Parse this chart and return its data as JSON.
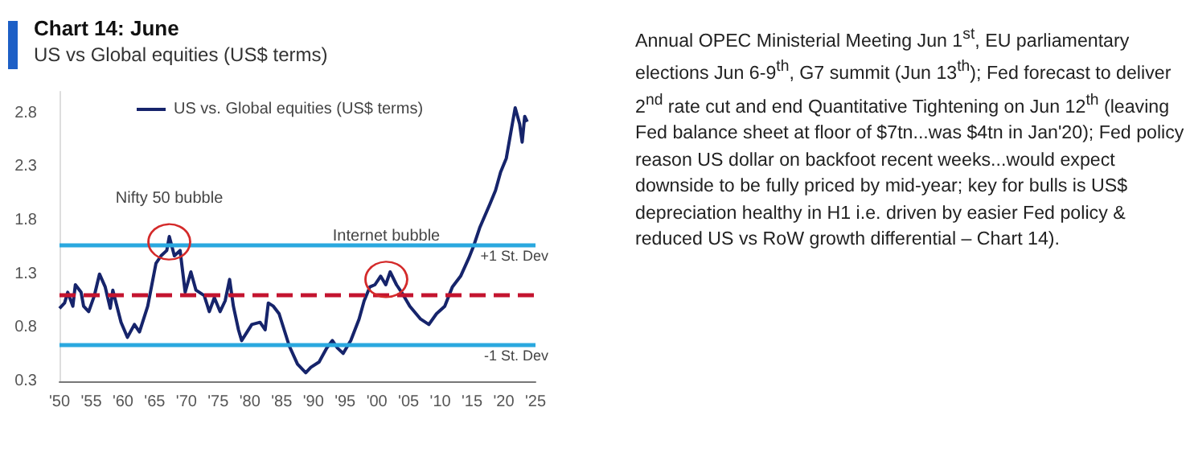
{
  "chart_data": {
    "type": "line",
    "title": "Chart 14: June",
    "subtitle": "US vs Global equities (US$ terms)",
    "x": [
      1950,
      1950.8,
      1951.3,
      1952.1,
      1952.5,
      1953.4,
      1953.8,
      1954.6,
      1955.5,
      1956.3,
      1957.2,
      1958,
      1958.4,
      1959.7,
      1960.7,
      1961.8,
      1962.6,
      1963.9,
      1965.2,
      1966,
      1966.9,
      1967.3,
      1968.1,
      1969,
      1969.8,
      1970.7,
      1971.5,
      1972.8,
      1973.6,
      1974.4,
      1975.3,
      1976.1,
      1976.8,
      1977.4,
      1978.2,
      1978.7,
      1980.3,
      1981.6,
      1982.4,
      1982.9,
      1983.7,
      1984.6,
      1986.2,
      1987.5,
      1988.8,
      1989.6,
      1990.9,
      1992.1,
      1993,
      1993.8,
      1994.7,
      1995.9,
      1997.2,
      1998,
      1998.9,
      1999.7,
      2000.6,
      2001.4,
      2002.1,
      2003.1,
      2003.9,
      2005.2,
      2006.9,
      2008.2,
      2009.4,
      2010.7,
      2011.9,
      2013.2,
      2014.5,
      2015.3,
      2016.2,
      2017.8,
      2018.7,
      2019.5,
      2020.4,
      2021.2,
      2021.8,
      2022.5,
      2022.9,
      2023.3,
      2023.7
    ],
    "series": [
      {
        "name": "US vs. Global equities (US$ terms)",
        "color": "#16246b",
        "values": [
          0.98,
          1.03,
          1.13,
          1.0,
          1.2,
          1.13,
          1.0,
          0.95,
          1.1,
          1.3,
          1.18,
          0.98,
          1.15,
          0.85,
          0.71,
          0.83,
          0.76,
          1.0,
          1.4,
          1.47,
          1.52,
          1.65,
          1.47,
          1.52,
          1.13,
          1.32,
          1.15,
          1.1,
          0.95,
          1.08,
          0.95,
          1.05,
          1.25,
          1.0,
          0.78,
          0.68,
          0.83,
          0.85,
          0.78,
          1.03,
          1.0,
          0.93,
          0.63,
          0.46,
          0.38,
          0.43,
          0.48,
          0.61,
          0.68,
          0.61,
          0.56,
          0.68,
          0.88,
          1.05,
          1.18,
          1.2,
          1.28,
          1.2,
          1.32,
          1.2,
          1.13,
          1.0,
          0.88,
          0.83,
          0.93,
          1.0,
          1.18,
          1.28,
          1.45,
          1.57,
          1.73,
          1.95,
          2.08,
          2.25,
          2.38,
          2.65,
          2.85,
          2.7,
          2.53,
          2.77,
          2.72
        ]
      }
    ],
    "xlim": [
      1950,
      2025
    ],
    "xticks": [
      {
        "value": 1950,
        "label": "'50"
      },
      {
        "value": 1955,
        "label": "'55"
      },
      {
        "value": 1960,
        "label": "'60"
      },
      {
        "value": 1965,
        "label": "'65"
      },
      {
        "value": 1970,
        "label": "'70"
      },
      {
        "value": 1975,
        "label": "'75"
      },
      {
        "value": 1980,
        "label": "'80"
      },
      {
        "value": 1985,
        "label": "'85"
      },
      {
        "value": 1990,
        "label": "'90"
      },
      {
        "value": 1995,
        "label": "'95"
      },
      {
        "value": 2000,
        "label": "'00"
      },
      {
        "value": 2005,
        "label": "'05"
      },
      {
        "value": 2010,
        "label": "'10"
      },
      {
        "value": 2015,
        "label": "'15"
      },
      {
        "value": 2020,
        "label": "'20"
      },
      {
        "value": 2025,
        "label": "'25"
      }
    ],
    "ylim": [
      0.3,
      3.0
    ],
    "yticks": [
      0.3,
      0.8,
      1.3,
      1.8,
      2.3,
      2.8
    ],
    "ref_lines": [
      {
        "axis": "y",
        "value": 1.57,
        "label": "+1 St. Dev",
        "color": "#2aa8df",
        "line_style": "solid"
      },
      {
        "axis": "y",
        "value": 1.1,
        "label": null,
        "color": "#c4142f",
        "line_style": "dashed"
      },
      {
        "axis": "y",
        "value": 0.64,
        "label": "-1 St. Dev",
        "color": "#2aa8df",
        "line_style": "solid"
      }
    ],
    "annotations": [
      {
        "text": "Nifty 50 bubble",
        "x": 1967.3,
        "y": 1.6
      },
      {
        "text": "Internet bubble",
        "x": 2001.5,
        "y": 1.25
      },
      "Annual OPEC Ministerial Meeting Jun 1$^{st}$, EU parliamentary elections Jun 6-9$^{th}$, G7 summit (Jun 13$^{th}$); Fed forecast to deliver 2$^{nd}$ rate cut and end Quantitative Tightening on Jun 12$^{th}$ (leaving Fed balance sheet at floor of $7tn...was $4tn in Jan'20); Fed policy reason US dollar on backfoot recent weeks...would expect downside to be fully priced by mid-year; key for bulls is US$ depreciation healthy in H1 i.e. driven by easier Fed policy & reduced US vs RoW growth differential – Chart 14)."
    ],
    "legend": "top left",
    "grid": false,
    "marker": "none",
    "line_style": "solid"
  }
}
